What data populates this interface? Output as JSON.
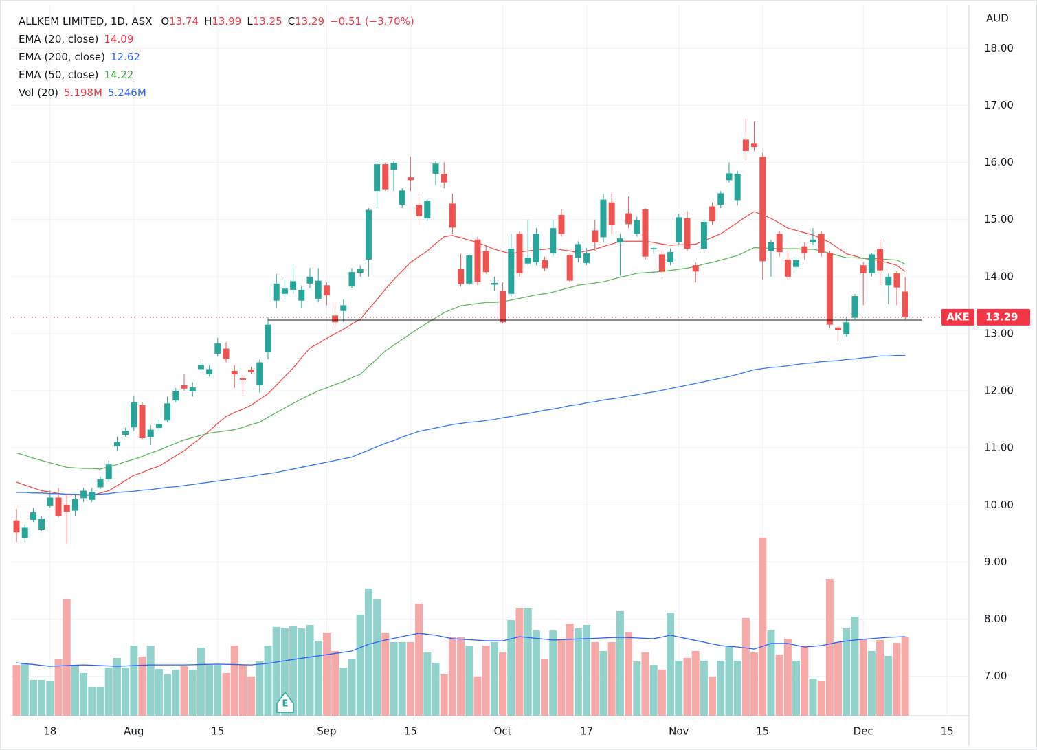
{
  "chart_data": {
    "type": "candlestick",
    "title": "ALLKEM LIMITED, 1D, ASX",
    "ohlc_labels": [
      "O",
      "H",
      "L",
      "C"
    ],
    "change": "−0.51 (−3.70%)",
    "currency": "AUD",
    "ticker": "AKE",
    "up_color": "#26a69a",
    "down_color": "#ef5350",
    "up_volume_color": "#92d2cc",
    "down_volume_color": "#f7a9a7",
    "xlim": [
      -0.74,
      113.61
    ],
    "xticks": [
      {
        "value": 4,
        "label": "18"
      },
      {
        "value": 14,
        "label": "Aug"
      },
      {
        "value": 24,
        "label": "15"
      },
      {
        "value": 37,
        "label": "Sep"
      },
      {
        "value": 47,
        "label": "15"
      },
      {
        "value": 58,
        "label": "Oct"
      },
      {
        "value": 68,
        "label": "17"
      },
      {
        "value": 79,
        "label": "Nov"
      },
      {
        "value": 89,
        "label": "15"
      },
      {
        "value": 101,
        "label": "Dec"
      },
      {
        "value": 111,
        "label": "15"
      }
    ],
    "ylim": [
      6.31,
      18.75
    ],
    "yticks": [
      {
        "value": 7,
        "label": "7.00"
      },
      {
        "value": 8,
        "label": "8.00"
      },
      {
        "value": 9,
        "label": "9.00"
      },
      {
        "value": 10,
        "label": "10.00"
      },
      {
        "value": 11,
        "label": "11.00"
      },
      {
        "value": 12,
        "label": "12.00"
      },
      {
        "value": 13,
        "label": "13.00"
      },
      {
        "value": 14,
        "label": "14.00"
      },
      {
        "value": 15,
        "label": "15.00"
      },
      {
        "value": 16,
        "label": "16.00"
      },
      {
        "value": 17,
        "label": "17.00"
      },
      {
        "value": 18,
        "label": "18.00"
      }
    ],
    "grid": true,
    "hline": 13.24,
    "open": [
      9.73,
      9.42,
      9.74,
      9.57,
      9.98,
      10.13,
      10.0,
      9.9,
      10.12,
      10.09,
      10.31,
      10.45,
      11.03,
      11.23,
      11.36,
      11.75,
      11.19,
      11.35,
      11.48,
      11.83,
      12.1,
      11.99,
      12.38,
      12.29,
      12.65,
      12.74,
      12.35,
      12.22,
      12.37,
      12.1,
      12.68,
      13.58,
      13.7,
      13.77,
      13.58,
      13.88,
      13.61,
      13.85,
      13.32,
      13.4,
      13.83,
      14.07,
      14.3,
      15.5,
      15.97,
      15.87,
      15.26,
      15.74,
      15.26,
      15.02,
      15.8,
      15.8,
      15.28,
      14.13,
      13.88,
      14.65,
      14.45,
      13.86,
      13.75,
      13.7,
      14.75,
      14.23,
      14.25,
      14.29,
      14.41,
      15.08,
      14.38,
      14.33,
      14.24,
      14.81,
      14.69,
      15.3,
      14.6,
      15.11,
      14.75,
      15.18,
      14.48,
      14.39,
      14.25,
      14.6,
      15.02,
      14.2,
      14.49,
      15.23,
      15.26,
      15.69,
      15.34,
      16.4,
      16.34,
      16.1,
      14.45,
      14.75,
      14.3,
      14.17,
      14.53,
      14.6,
      14.75,
      14.42,
      13.11,
      12.99,
      13.28,
      14.2,
      14.06,
      14.49,
      13.85,
      14.06,
      13.74
    ],
    "high": [
      9.93,
      9.66,
      9.95,
      9.8,
      10.25,
      10.3,
      10.2,
      10.2,
      10.3,
      10.3,
      10.5,
      10.78,
      11.2,
      11.35,
      11.92,
      11.8,
      11.4,
      11.5,
      11.9,
      12.05,
      12.3,
      12.15,
      12.52,
      12.45,
      12.93,
      12.85,
      12.45,
      12.28,
      12.42,
      12.55,
      13.3,
      14.05,
      13.95,
      14.2,
      13.85,
      14.15,
      14.15,
      13.9,
      13.55,
      13.6,
      14.15,
      14.2,
      15.2,
      16.02,
      16.0,
      16.02,
      15.55,
      16.1,
      15.4,
      15.35,
      16.02,
      16.0,
      15.45,
      14.4,
      14.4,
      14.7,
      14.55,
      14.0,
      13.9,
      14.75,
      14.8,
      15.0,
      14.85,
      14.35,
      15.0,
      15.18,
      14.4,
      14.62,
      14.5,
      15.0,
      15.45,
      15.45,
      14.75,
      15.4,
      15.05,
      15.2,
      14.52,
      14.45,
      14.5,
      15.1,
      15.15,
      14.25,
      15.0,
      15.3,
      15.5,
      16.0,
      15.85,
      16.77,
      16.72,
      16.17,
      14.65,
      14.8,
      14.45,
      14.35,
      14.6,
      14.85,
      14.8,
      14.45,
      13.15,
      13.3,
      13.7,
      14.25,
      14.42,
      14.65,
      14.05,
      14.1,
      13.99
    ],
    "low": [
      9.35,
      9.35,
      9.7,
      9.55,
      9.95,
      9.78,
      9.32,
      9.8,
      10.05,
      10.05,
      10.28,
      10.4,
      10.95,
      11.2,
      11.3,
      11.15,
      11.05,
      11.3,
      11.45,
      11.8,
      12.0,
      11.9,
      12.35,
      12.25,
      12.6,
      12.5,
      12.05,
      11.95,
      12.3,
      11.97,
      12.55,
      13.45,
      13.6,
      13.7,
      13.45,
      13.8,
      13.55,
      13.5,
      13.1,
      13.2,
      13.8,
      14.0,
      14.0,
      15.2,
      15.5,
      15.5,
      15.2,
      15.5,
      14.9,
      14.98,
      15.6,
      15.55,
      14.75,
      13.83,
      13.85,
      13.85,
      14.05,
      13.75,
      13.18,
      13.65,
      14.0,
      14.2,
      14.2,
      14.1,
      14.35,
      14.7,
      13.9,
      14.25,
      14.2,
      14.45,
      14.6,
      14.75,
      14.02,
      14.85,
      14.7,
      14.3,
      14.4,
      14.02,
      14.2,
      14.55,
      14.45,
      13.9,
      14.45,
      14.9,
      15.2,
      15.65,
      15.25,
      16.05,
      16.2,
      13.95,
      14.0,
      14.35,
      13.95,
      14.1,
      14.3,
      14.55,
      14.35,
      13.1,
      12.86,
      12.95,
      13.25,
      13.5,
      14.0,
      13.85,
      13.52,
      13.5,
      13.25
    ],
    "close": [
      9.52,
      9.6,
      9.87,
      9.76,
      10.13,
      9.8,
      9.88,
      10.1,
      10.25,
      10.23,
      10.45,
      10.71,
      11.1,
      11.3,
      11.8,
      11.17,
      11.32,
      11.42,
      11.78,
      12.0,
      12.04,
      12.06,
      12.45,
      12.38,
      12.83,
      12.56,
      12.29,
      12.19,
      12.33,
      12.5,
      13.16,
      13.88,
      13.79,
      13.92,
      13.77,
      14.0,
      13.93,
      13.67,
      13.2,
      13.5,
      14.08,
      14.13,
      15.17,
      15.97,
      15.53,
      15.99,
      15.51,
      15.69,
      15.06,
      15.33,
      15.98,
      15.65,
      14.86,
      13.87,
      14.37,
      13.91,
      14.08,
      13.89,
      13.2,
      14.49,
      14.06,
      14.33,
      14.75,
      14.15,
      14.85,
      14.75,
      13.93,
      14.57,
      14.41,
      14.6,
      15.35,
      14.9,
      14.67,
      14.92,
      14.99,
      14.35,
      14.5,
      14.09,
      14.43,
      15.04,
      14.49,
      14.09,
      14.96,
      14.97,
      15.46,
      15.81,
      15.8,
      16.2,
      16.27,
      14.27,
      14.6,
      14.43,
      14.0,
      14.29,
      14.41,
      14.65,
      14.42,
      13.16,
      13.07,
      13.2,
      13.66,
      14.06,
      14.39,
      14.11,
      14.0,
      13.81,
      13.29
    ],
    "series": [
      {
        "name": "EMA (20, close)",
        "color": "#f0504f",
        "values": [
          10.4,
          10.35,
          10.3,
          10.25,
          10.23,
          10.2,
          10.18,
          10.18,
          10.17,
          10.17,
          10.21,
          10.25,
          10.34,
          10.43,
          10.52,
          10.57,
          10.63,
          10.68,
          10.77,
          10.86,
          10.95,
          11.07,
          11.18,
          11.3,
          11.43,
          11.55,
          11.62,
          11.68,
          11.75,
          11.85,
          11.95,
          12.1,
          12.25,
          12.4,
          12.58,
          12.75,
          12.83,
          12.92,
          13.0,
          13.08,
          13.17,
          13.25,
          13.43,
          13.6,
          13.78,
          13.95,
          14.1,
          14.25,
          14.35,
          14.45,
          14.58,
          14.7,
          14.72,
          14.68,
          14.64,
          14.6,
          14.54,
          14.48,
          14.44,
          14.4,
          14.43,
          14.45,
          14.47,
          14.48,
          14.5,
          14.47,
          14.45,
          14.42,
          14.45,
          14.48,
          14.53,
          14.57,
          14.62,
          14.62,
          14.62,
          14.62,
          14.6,
          14.57,
          14.55,
          14.56,
          14.56,
          14.57,
          14.63,
          14.69,
          14.75,
          14.85,
          14.95,
          15.05,
          15.14,
          15.08,
          15.02,
          14.94,
          14.85,
          14.81,
          14.77,
          14.73,
          14.67,
          14.6,
          14.5,
          14.4,
          14.36,
          14.32,
          14.3,
          14.28,
          14.24,
          14.2,
          14.09
        ]
      },
      {
        "name": "EMA (200, close)",
        "color": "#3179f5",
        "values": [
          10.22,
          10.22,
          10.21,
          10.21,
          10.2,
          10.2,
          10.19,
          10.19,
          10.18,
          10.18,
          10.19,
          10.2,
          10.22,
          10.23,
          10.24,
          10.26,
          10.27,
          10.29,
          10.31,
          10.32,
          10.34,
          10.36,
          10.38,
          10.4,
          10.42,
          10.44,
          10.46,
          10.48,
          10.5,
          10.53,
          10.55,
          10.57,
          10.6,
          10.63,
          10.66,
          10.69,
          10.72,
          10.75,
          10.78,
          10.81,
          10.84,
          10.9,
          10.96,
          11.02,
          11.08,
          11.13,
          11.19,
          11.24,
          11.29,
          11.32,
          11.35,
          11.38,
          11.41,
          11.43,
          11.45,
          11.46,
          11.48,
          11.5,
          11.53,
          11.55,
          11.58,
          11.6,
          11.63,
          11.66,
          11.68,
          11.71,
          11.74,
          11.76,
          11.79,
          11.81,
          11.84,
          11.86,
          11.88,
          11.91,
          11.93,
          11.96,
          11.98,
          12.01,
          12.04,
          12.07,
          12.1,
          12.13,
          12.16,
          12.19,
          12.22,
          12.25,
          12.29,
          12.33,
          12.37,
          12.39,
          12.41,
          12.42,
          12.44,
          12.46,
          12.48,
          12.49,
          12.51,
          12.52,
          12.53,
          12.55,
          12.56,
          12.58,
          12.59,
          12.61,
          12.61,
          12.62,
          12.62
        ]
      },
      {
        "name": "EMA (50, close)",
        "color": "#5cb85f",
        "values": [
          10.91,
          10.87,
          10.82,
          10.78,
          10.74,
          10.7,
          10.66,
          10.65,
          10.64,
          10.64,
          10.63,
          10.67,
          10.71,
          10.76,
          10.8,
          10.85,
          10.91,
          10.96,
          11.02,
          11.08,
          11.14,
          11.18,
          11.22,
          11.26,
          11.28,
          11.3,
          11.32,
          11.36,
          11.41,
          11.45,
          11.54,
          11.62,
          11.7,
          11.78,
          11.86,
          11.93,
          12.0,
          12.05,
          12.11,
          12.16,
          12.23,
          12.29,
          12.43,
          12.56,
          12.7,
          12.8,
          12.9,
          13.0,
          13.1,
          13.19,
          13.28,
          13.37,
          13.43,
          13.49,
          13.51,
          13.53,
          13.55,
          13.55,
          13.56,
          13.59,
          13.62,
          13.65,
          13.68,
          13.7,
          13.73,
          13.77,
          13.81,
          13.85,
          13.87,
          13.89,
          13.91,
          13.95,
          13.99,
          14.02,
          14.06,
          14.07,
          14.08,
          14.09,
          14.11,
          14.13,
          14.15,
          14.18,
          14.22,
          14.25,
          14.29,
          14.33,
          14.37,
          14.44,
          14.51,
          14.5,
          14.5,
          14.49,
          14.49,
          14.49,
          14.48,
          14.48,
          14.45,
          14.41,
          14.37,
          14.33,
          14.33,
          14.32,
          14.32,
          14.31,
          14.3,
          14.29,
          14.22
        ]
      }
    ],
    "volume": {
      "name": "Vol (20)",
      "vol_ylim": [
        0,
        47.15
      ],
      "last_label": "5.198M",
      "values": [
        3.37,
        3.47,
        2.37,
        2.37,
        2.28,
        3.74,
        7.75,
        3.37,
        2.83,
        1.92,
        1.92,
        3.19,
        3.83,
        3.19,
        4.65,
        3.92,
        4.65,
        3.1,
        2.74,
        3.06,
        3.28,
        3.06,
        4.51,
        3.37,
        3.37,
        2.83,
        4.65,
        3.37,
        2.6,
        3.6,
        4.65,
        5.88,
        5.79,
        5.93,
        5.79,
        6.02,
        4.97,
        5.52,
        4.29,
        3.19,
        3.74,
        6.7,
        8.44,
        7.75,
        5.52,
        4.88,
        4.88,
        4.88,
        7.43,
        4.2,
        3.51,
        2.74,
        5.2,
        5.2,
        4.65,
        2.6,
        4.65,
        4.88,
        4.2,
        6.34,
        7.16,
        7.16,
        5.65,
        3.74,
        5.65,
        5.11,
        6.11,
        5.79,
        6.02,
        4.88,
        4.29,
        4.88,
        6.93,
        5.56,
        3.6,
        4.2,
        3.37,
        3.06,
        6.84,
        3.65,
        3.83,
        4.29,
        3.65,
        2.6,
        3.65,
        4.65,
        3.65,
        6.48,
        4.2,
        11.81,
        5.65,
        4.06,
        5.11,
        3.65,
        4.65,
        2.46,
        2.28,
        9.07,
        4.88,
        5.79,
        6.57,
        5.11,
        4.29,
        5.02,
        3.97,
        4.83,
        5.198
      ],
      "ma": {
        "color": "#2962ff",
        "last_label": "5.246M",
        "values": [
          3.51,
          3.45,
          3.4,
          3.34,
          3.28,
          3.3,
          3.33,
          3.35,
          3.37,
          3.35,
          3.33,
          3.3,
          3.28,
          3.3,
          3.33,
          3.35,
          3.37,
          3.37,
          3.37,
          3.37,
          3.37,
          3.38,
          3.4,
          3.41,
          3.42,
          3.41,
          3.4,
          3.38,
          3.37,
          3.42,
          3.47,
          3.56,
          3.65,
          3.73,
          3.81,
          3.89,
          3.97,
          4.05,
          4.13,
          4.21,
          4.29,
          4.52,
          4.74,
          4.88,
          5.02,
          5.13,
          5.25,
          5.36,
          5.47,
          5.4,
          5.34,
          5.22,
          5.11,
          5.08,
          5.04,
          5.01,
          4.97,
          4.97,
          4.97,
          5.1,
          5.24,
          5.19,
          5.13,
          5.08,
          5.02,
          5.04,
          5.07,
          5.09,
          5.11,
          5.13,
          5.16,
          5.18,
          5.2,
          5.18,
          5.16,
          5.13,
          5.11,
          5.22,
          5.34,
          5.22,
          5.11,
          4.99,
          4.88,
          4.76,
          4.65,
          4.6,
          4.56,
          4.49,
          4.42,
          4.6,
          4.79,
          4.79,
          4.79,
          4.67,
          4.56,
          4.6,
          4.65,
          4.76,
          4.88,
          4.95,
          5.02,
          5.07,
          5.11,
          5.16,
          5.2,
          5.22,
          5.246
        ]
      }
    }
  }
}
